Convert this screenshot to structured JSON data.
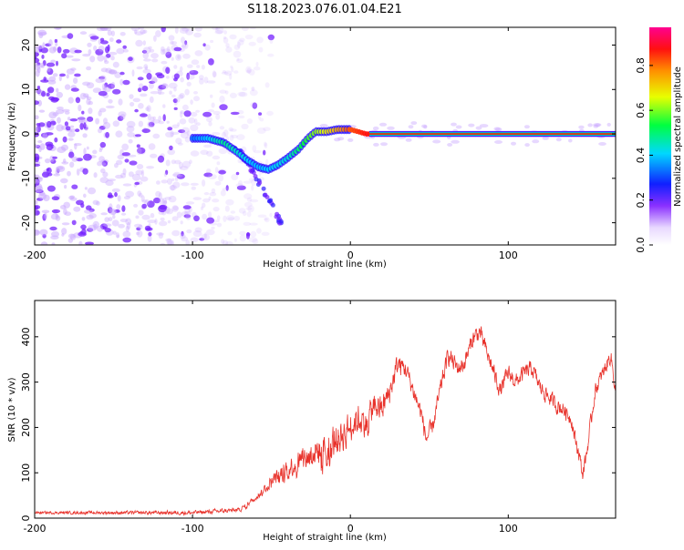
{
  "title": "S118.2023.076.01.04.E21",
  "colors": {
    "snr_line": "#e8322b",
    "scatter": "#7a2cff",
    "background": "#ffffff"
  },
  "chart_data": [
    {
      "type": "heatmap",
      "name": "spectrogram",
      "xlabel": "Height of straight line (km)",
      "ylabel": "Frequency (Hz)",
      "xlim": [
        -200,
        168
      ],
      "ylim": [
        -25,
        24
      ],
      "xticks": [
        -200,
        -100,
        0,
        100
      ],
      "xtick_labels": [
        "-200",
        "-100",
        "0",
        "100"
      ],
      "yticks": [
        20,
        10,
        0,
        -10,
        -20
      ],
      "ytick_labels": [
        "20",
        "10",
        "0",
        "-10",
        "-20"
      ],
      "colorbar": {
        "label": "Normalized spectral amplitude",
        "range": [
          0,
          0.97
        ],
        "ticks": [
          0.0,
          0.2,
          0.4,
          0.6,
          0.8
        ],
        "tick_labels": [
          "0.0",
          "0.2",
          "0.4",
          "0.6",
          "0.8"
        ]
      },
      "ridge": [
        [
          -100,
          -1
        ],
        [
          -90,
          -1
        ],
        [
          -80,
          -2
        ],
        [
          -72,
          -4
        ],
        [
          -65,
          -6
        ],
        [
          -58,
          -7.5
        ],
        [
          -52,
          -8
        ],
        [
          -46,
          -7
        ],
        [
          -40,
          -5.5
        ],
        [
          -33,
          -3.5
        ],
        [
          -27,
          -1
        ],
        [
          -22,
          0.5
        ],
        [
          -15,
          0.5
        ],
        [
          -8,
          1
        ],
        [
          0,
          1
        ],
        [
          10,
          0
        ],
        [
          20,
          0
        ],
        [
          168,
          0
        ]
      ],
      "ridge_amplitude": [
        [
          -100,
          0.35
        ],
        [
          -80,
          0.5
        ],
        [
          -60,
          0.4
        ],
        [
          -40,
          0.45
        ],
        [
          -25,
          0.6
        ],
        [
          -10,
          0.75
        ],
        [
          0,
          0.85
        ],
        [
          10,
          0.9
        ],
        [
          168,
          0.92
        ]
      ],
      "branch": [
        [
          -75,
          -2
        ],
        [
          -66,
          -6
        ],
        [
          -58,
          -11
        ],
        [
          -50,
          -16
        ],
        [
          -43,
          -21
        ]
      ]
    },
    {
      "type": "line",
      "name": "snr",
      "xlabel": "Height of straight line (km)",
      "ylabel": "SNR (10 * v/v)",
      "xlim": [
        -200,
        168
      ],
      "ylim": [
        0,
        480
      ],
      "xticks": [
        -200,
        -100,
        0,
        100
      ],
      "xtick_labels": [
        "-200",
        "-100",
        "0",
        "100"
      ],
      "yticks": [
        0,
        100,
        200,
        300,
        400
      ],
      "ytick_labels": [
        "0",
        "100",
        "200",
        "300",
        "400"
      ],
      "envelope": [
        [
          -200,
          12
        ],
        [
          -100,
          12
        ],
        [
          -70,
          18
        ],
        [
          -60,
          45
        ],
        [
          -50,
          80
        ],
        [
          -40,
          110
        ],
        [
          -30,
          130
        ],
        [
          -20,
          150
        ],
        [
          -10,
          170
        ],
        [
          0,
          200
        ],
        [
          5,
          220
        ],
        [
          10,
          210
        ],
        [
          15,
          250
        ],
        [
          20,
          240
        ],
        [
          25,
          280
        ],
        [
          30,
          340
        ],
        [
          35,
          330
        ],
        [
          40,
          280
        ],
        [
          45,
          230
        ],
        [
          48,
          175
        ],
        [
          52,
          200
        ],
        [
          58,
          300
        ],
        [
          62,
          360
        ],
        [
          68,
          330
        ],
        [
          72,
          340
        ],
        [
          78,
          400
        ],
        [
          82,
          410
        ],
        [
          85,
          380
        ],
        [
          90,
          330
        ],
        [
          95,
          280
        ],
        [
          100,
          320
        ],
        [
          105,
          300
        ],
        [
          110,
          320
        ],
        [
          115,
          330
        ],
        [
          120,
          290
        ],
        [
          125,
          270
        ],
        [
          130,
          250
        ],
        [
          135,
          240
        ],
        [
          140,
          220
        ],
        [
          142,
          180
        ],
        [
          145,
          140
        ],
        [
          147,
          95
        ],
        [
          150,
          150
        ],
        [
          155,
          280
        ],
        [
          160,
          320
        ],
        [
          165,
          360
        ],
        [
          168,
          280
        ]
      ],
      "noise_amplitude": [
        [
          -200,
          4
        ],
        [
          -60,
          8
        ],
        [
          -40,
          35
        ],
        [
          -10,
          60
        ],
        [
          0,
          50
        ],
        [
          20,
          45
        ],
        [
          40,
          30
        ],
        [
          168,
          25
        ]
      ]
    }
  ]
}
